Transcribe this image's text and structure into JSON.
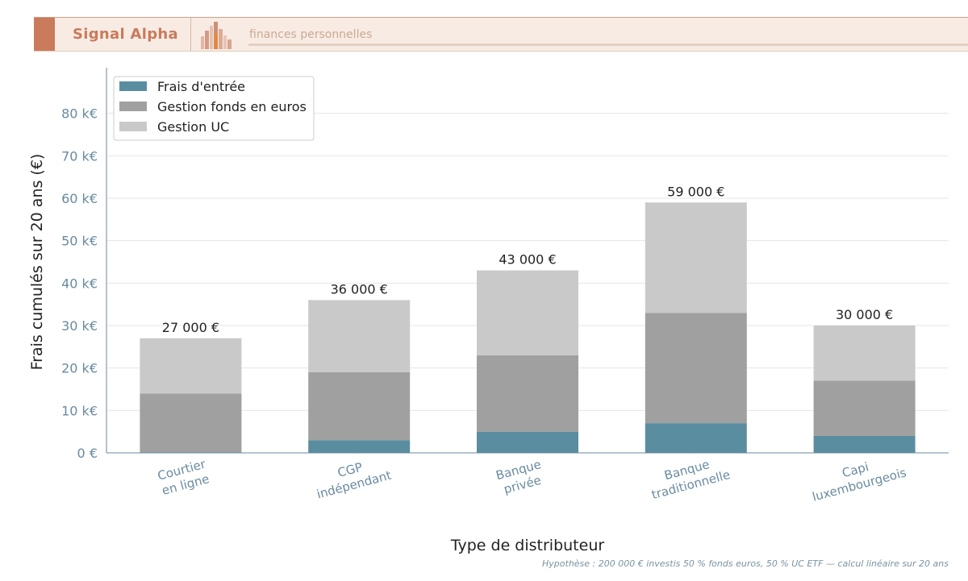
{
  "header": {
    "brand": "Signal Alpha",
    "tagline": "finances personnelles"
  },
  "footnote": "Hypothèse : 200 000 € investis 50 % fonds euros, 50 % UC ETF — calcul linéaire sur 20 ans",
  "colors": {
    "frais_entree": "#5b8da0",
    "gestion_euros": "#a0a0a0",
    "gestion_uc": "#c9c9c9",
    "axis_text": "#6a8aa0",
    "brand": "#c97b5c"
  },
  "chart_data": {
    "type": "bar",
    "stacked": true,
    "categories": [
      [
        "Courtier",
        "en ligne"
      ],
      [
        "CGP",
        "indépendant"
      ],
      [
        "Banque",
        "privée"
      ],
      [
        "Banque",
        "traditionnelle"
      ],
      [
        "Capi",
        "luxembourgeois"
      ]
    ],
    "series": [
      {
        "name": "Frais d'entrée",
        "color": "#5b8da0",
        "values": [
          0,
          3000,
          5000,
          7000,
          4000
        ]
      },
      {
        "name": "Gestion fonds en euros",
        "color": "#a0a0a0",
        "values": [
          14000,
          16000,
          18000,
          26000,
          13000
        ]
      },
      {
        "name": "Gestion UC",
        "color": "#c9c9c9",
        "values": [
          13000,
          17000,
          20000,
          26000,
          13000
        ]
      }
    ],
    "totals_labels": [
      "27 000 €",
      "36 000 €",
      "43 000 €",
      "59 000 €",
      "30 000 €"
    ],
    "xlabel": "Type de distributeur",
    "ylabel": "Frais cumulés sur 20 ans (€)",
    "ylim": [
      0,
      90000
    ],
    "yticks": [
      0,
      10000,
      20000,
      30000,
      40000,
      50000,
      60000,
      70000,
      80000
    ],
    "ytick_labels": [
      "0 €",
      "10 k€",
      "20 k€",
      "30 k€",
      "40 k€",
      "50 k€",
      "60 k€",
      "70 k€",
      "80 k€"
    ],
    "grid": "horizontal",
    "legend_position": "top-left"
  }
}
